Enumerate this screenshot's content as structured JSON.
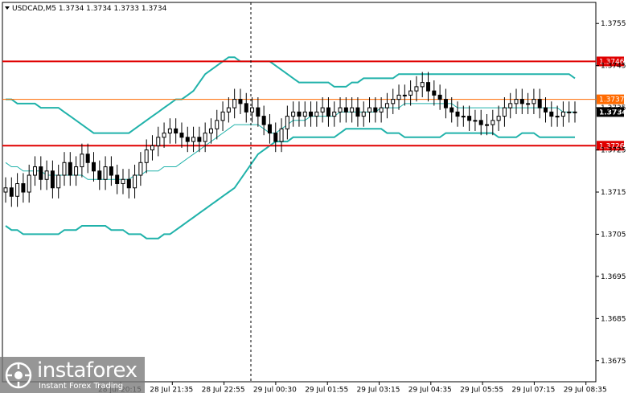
{
  "symbol_info": "USDCAD,M5  1.3734 1.3734 1.3733 1.3734",
  "menu_icon": "triangle-down-icon",
  "watermark": {
    "name": "instaforex",
    "tagline": "Instant Forex Trading",
    "icon": "instaforex-logo-icon"
  },
  "colors": {
    "band": "#20b2aa",
    "ma": "#20b2aa",
    "resistance": "#e00000",
    "level_mid": "#ff6a00",
    "current_price_bg": "#000000",
    "candle": "#000000",
    "crosshair": "#000000"
  },
  "levels": [
    {
      "name": "level-1.3746",
      "price": 1.3746,
      "label": "1.3746",
      "color": "#e00000"
    },
    {
      "name": "level-1.3737",
      "price": 1.3737,
      "label": "1.3737",
      "color": "#ff6a00"
    },
    {
      "name": "level-1.3726",
      "price": 1.3726,
      "label": "1.3726",
      "color": "#e00000"
    }
  ],
  "current_price": {
    "price": 1.3734,
    "label": "1.3734"
  },
  "chart_data": {
    "type": "candlestick",
    "title": "USDCAD,M5",
    "ylim": [
      1.367,
      1.376
    ],
    "y_ticks": [
      "1.3755",
      "1.3745",
      "1.3735",
      "1.3725",
      "1.3715",
      "1.3705",
      "1.3695",
      "1.3685",
      "1.3675"
    ],
    "y_tick_values": [
      1.3755,
      1.3745,
      1.3735,
      1.3725,
      1.3715,
      1.3705,
      1.3695,
      1.3685,
      1.3675
    ],
    "x_ticks": [
      "28 Jul 20:15",
      "28 Jul 21:35",
      "28 Jul 22:55",
      "29 Jul 00:30",
      "29 Jul 01:55",
      "29 Jul 03:15",
      "29 Jul 04:35",
      "29 Jul 05:55",
      "29 Jul 07:15",
      "29 Jul 08:35"
    ],
    "closes": [
      1.3716,
      1.3714,
      1.3717,
      1.3715,
      1.3719,
      1.3721,
      1.3718,
      1.372,
      1.3716,
      1.3719,
      1.3722,
      1.3719,
      1.3721,
      1.3724,
      1.3722,
      1.372,
      1.3718,
      1.3721,
      1.3719,
      1.3717,
      1.3718,
      1.3716,
      1.3719,
      1.3722,
      1.3725,
      1.3726,
      1.3728,
      1.3729,
      1.373,
      1.3729,
      1.3728,
      1.3727,
      1.3728,
      1.3727,
      1.3729,
      1.373,
      1.3732,
      1.3734,
      1.3735,
      1.3737,
      1.3736,
      1.3734,
      1.3735,
      1.3733,
      1.3731,
      1.3729,
      1.3727,
      1.373,
      1.3733,
      1.3734,
      1.3733,
      1.3734,
      1.3733,
      1.3734,
      1.3735,
      1.3733,
      1.3734,
      1.3735,
      1.3734,
      1.3735,
      1.3733,
      1.3734,
      1.3735,
      1.3734,
      1.3735,
      1.3736,
      1.3737,
      1.3738,
      1.3738,
      1.3739,
      1.374,
      1.3741,
      1.3739,
      1.3738,
      1.3737,
      1.3735,
      1.3734,
      1.3733,
      1.3733,
      1.3732,
      1.3732,
      1.3731,
      1.3731,
      1.3732,
      1.3733,
      1.3735,
      1.3736,
      1.3737,
      1.3736,
      1.3736,
      1.3737,
      1.3735,
      1.3734,
      1.3733,
      1.3733,
      1.3734,
      1.3734,
      1.3734
    ],
    "ma": [
      1.3722,
      1.3721,
      1.3721,
      1.372,
      1.372,
      1.372,
      1.372,
      1.3719,
      1.3719,
      1.3719,
      1.3719,
      1.3719,
      1.3719,
      1.3719,
      1.3718,
      1.3718,
      1.3718,
      1.3718,
      1.3718,
      1.3718,
      1.3718,
      1.3718,
      1.3719,
      1.3719,
      1.372,
      1.372,
      1.372,
      1.3721,
      1.3721,
      1.3721,
      1.3722,
      1.3723,
      1.3724,
      1.3725,
      1.3726,
      1.3727,
      1.3728,
      1.3729,
      1.373,
      1.3731,
      1.3731,
      1.3731,
      1.3731,
      1.3731,
      1.373,
      1.3729,
      1.3729,
      1.373,
      1.3731,
      1.3732,
      1.3732,
      1.3732,
      1.3733,
      1.3733,
      1.3733,
      1.3733,
      1.3733,
      1.3734,
      1.3734,
      1.3734,
      1.3734,
      1.3734,
      1.3734,
      1.3734,
      1.3735,
      1.3735,
      1.3735,
      1.3735,
      1.3736,
      1.3736,
      1.3736,
      1.3736,
      1.3736,
      1.3736,
      1.3736,
      1.3736,
      1.3736,
      1.3735,
      1.3735,
      1.3735,
      1.3735,
      1.3735,
      1.3735,
      1.3735,
      1.3735,
      1.3735,
      1.3735,
      1.3735,
      1.3735,
      1.3735,
      1.3735,
      1.3735,
      1.3735,
      1.3735,
      1.3735,
      1.3734,
      1.3734,
      1.3734
    ],
    "band_upper": [
      1.3737,
      1.3737,
      1.3736,
      1.3736,
      1.3736,
      1.3736,
      1.3735,
      1.3735,
      1.3735,
      1.3735,
      1.3734,
      1.3733,
      1.3732,
      1.3731,
      1.373,
      1.3729,
      1.3729,
      1.3729,
      1.3729,
      1.3729,
      1.3729,
      1.3729,
      1.373,
      1.3731,
      1.3732,
      1.3733,
      1.3734,
      1.3735,
      1.3736,
      1.3737,
      1.3737,
      1.3738,
      1.3739,
      1.3741,
      1.3743,
      1.3744,
      1.3745,
      1.3746,
      1.3747,
      1.3747,
      1.3746,
      1.3746,
      1.3746,
      1.3746,
      1.3746,
      1.3746,
      1.3745,
      1.3744,
      1.3743,
      1.3742,
      1.3741,
      1.3741,
      1.3741,
      1.3741,
      1.3741,
      1.3741,
      1.374,
      1.374,
      1.374,
      1.3741,
      1.3741,
      1.3742,
      1.3742,
      1.3742,
      1.3742,
      1.3742,
      1.3742,
      1.3743,
      1.3743,
      1.3743,
      1.3743,
      1.3743,
      1.3743,
      1.3743,
      1.3743,
      1.3743,
      1.3743,
      1.3743,
      1.3743,
      1.3743,
      1.3743,
      1.3743,
      1.3743,
      1.3743,
      1.3743,
      1.3743,
      1.3743,
      1.3743,
      1.3743,
      1.3743,
      1.3743,
      1.3743,
      1.3743,
      1.3743,
      1.3743,
      1.3743,
      1.3743,
      1.3742
    ],
    "band_lower": [
      1.3707,
      1.3706,
      1.3706,
      1.3705,
      1.3705,
      1.3705,
      1.3705,
      1.3705,
      1.3705,
      1.3705,
      1.3706,
      1.3706,
      1.3706,
      1.3707,
      1.3707,
      1.3707,
      1.3707,
      1.3707,
      1.3706,
      1.3706,
      1.3706,
      1.3705,
      1.3705,
      1.3705,
      1.3704,
      1.3704,
      1.3704,
      1.3705,
      1.3705,
      1.3706,
      1.3707,
      1.3708,
      1.3709,
      1.371,
      1.3711,
      1.3712,
      1.3713,
      1.3714,
      1.3715,
      1.3716,
      1.3718,
      1.372,
      1.3722,
      1.3724,
      1.3725,
      1.3726,
      1.3727,
      1.3727,
      1.3727,
      1.3728,
      1.3728,
      1.3728,
      1.3728,
      1.3728,
      1.3728,
      1.3728,
      1.3728,
      1.3729,
      1.373,
      1.373,
      1.373,
      1.373,
      1.373,
      1.373,
      1.373,
      1.3729,
      1.3729,
      1.3729,
      1.3728,
      1.3728,
      1.3728,
      1.3728,
      1.3728,
      1.3728,
      1.3728,
      1.3729,
      1.3729,
      1.3729,
      1.3729,
      1.3729,
      1.3729,
      1.3729,
      1.3729,
      1.3729,
      1.3728,
      1.3728,
      1.3728,
      1.3728,
      1.3729,
      1.3729,
      1.3729,
      1.3728,
      1.3728,
      1.3728,
      1.3728,
      1.3728,
      1.3728,
      1.3728
    ]
  }
}
